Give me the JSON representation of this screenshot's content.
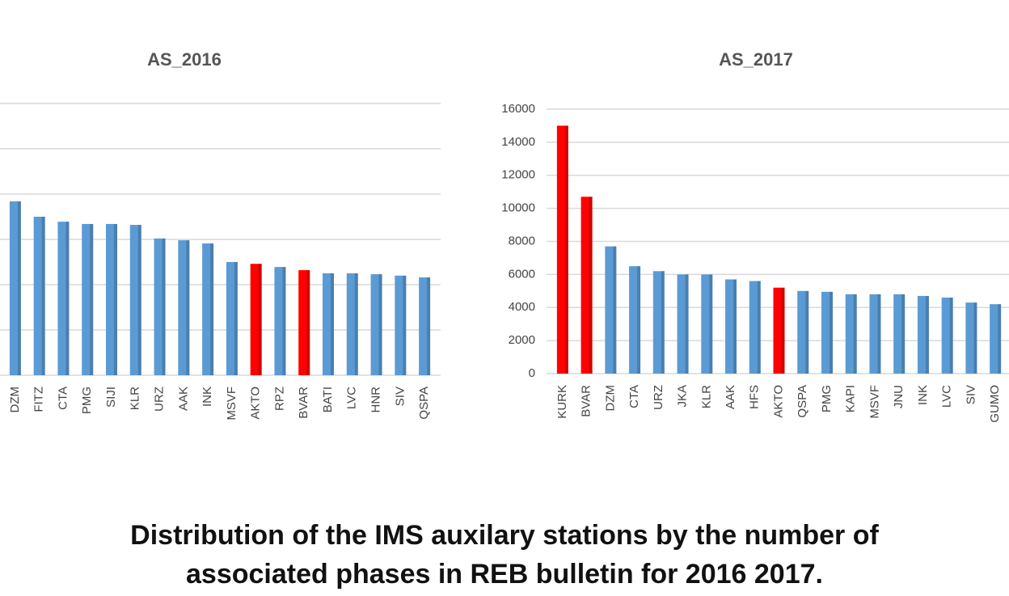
{
  "chart_data": [
    {
      "type": "bar",
      "title": "AS_2016",
      "categories": [
        "DZM",
        "FITZ",
        "CTA",
        "PMG",
        "SIJI",
        "KLR",
        "URZ",
        "AAK",
        "INK",
        "MSVF",
        "AKTO",
        "RPZ",
        "BVAR",
        "BATI",
        "LVC",
        "HNR",
        "SIV",
        "QSPA"
      ],
      "values": [
        3.84,
        3.5,
        3.39,
        3.34,
        3.34,
        3.32,
        3.02,
        2.98,
        2.91,
        2.5,
        2.46,
        2.39,
        2.32,
        2.25,
        2.25,
        2.23,
        2.2,
        2.16
      ],
      "colors": [
        "#5b9bd5",
        "#5b9bd5",
        "#5b9bd5",
        "#5b9bd5",
        "#5b9bd5",
        "#5b9bd5",
        "#5b9bd5",
        "#5b9bd5",
        "#5b9bd5",
        "#5b9bd5",
        "#ff0000",
        "#5b9bd5",
        "#ff0000",
        "#5b9bd5",
        "#5b9bd5",
        "#5b9bd5",
        "#5b9bd5",
        "#5b9bd5"
      ],
      "ylim": [
        0,
        6
      ],
      "yticks": [
        0,
        1,
        2,
        3,
        4,
        5,
        6
      ],
      "ytick_labels": false,
      "grid": true
    },
    {
      "type": "bar",
      "title": "AS_2017",
      "categories": [
        "KURK",
        "BVAR",
        "DZM",
        "CTA",
        "URZ",
        "JKA",
        "KLR",
        "AAK",
        "HFS",
        "AKTO",
        "QSPA",
        "PMG",
        "KAPI",
        "MSVF",
        "JNU",
        "INK",
        "LVC",
        "SIV",
        "GUMO"
      ],
      "values": [
        15000,
        10700,
        7700,
        6500,
        6200,
        6000,
        6000,
        5700,
        5600,
        5200,
        5000,
        4950,
        4800,
        4800,
        4800,
        4700,
        4600,
        4300,
        4200
      ],
      "colors": [
        "#ff0000",
        "#ff0000",
        "#5b9bd5",
        "#5b9bd5",
        "#5b9bd5",
        "#5b9bd5",
        "#5b9bd5",
        "#5b9bd5",
        "#5b9bd5",
        "#ff0000",
        "#5b9bd5",
        "#5b9bd5",
        "#5b9bd5",
        "#5b9bd5",
        "#5b9bd5",
        "#5b9bd5",
        "#5b9bd5",
        "#5b9bd5",
        "#5b9bd5"
      ],
      "ylim": [
        0,
        16000
      ],
      "yticks": [
        0,
        2000,
        4000,
        6000,
        8000,
        10000,
        12000,
        14000,
        16000
      ],
      "ytick_labels": true,
      "grid": true
    }
  ],
  "caption": [
    "Distribution of the IMS auxilary stations by the number of",
    "associated phases in REB bulletin for 2016  2017."
  ]
}
